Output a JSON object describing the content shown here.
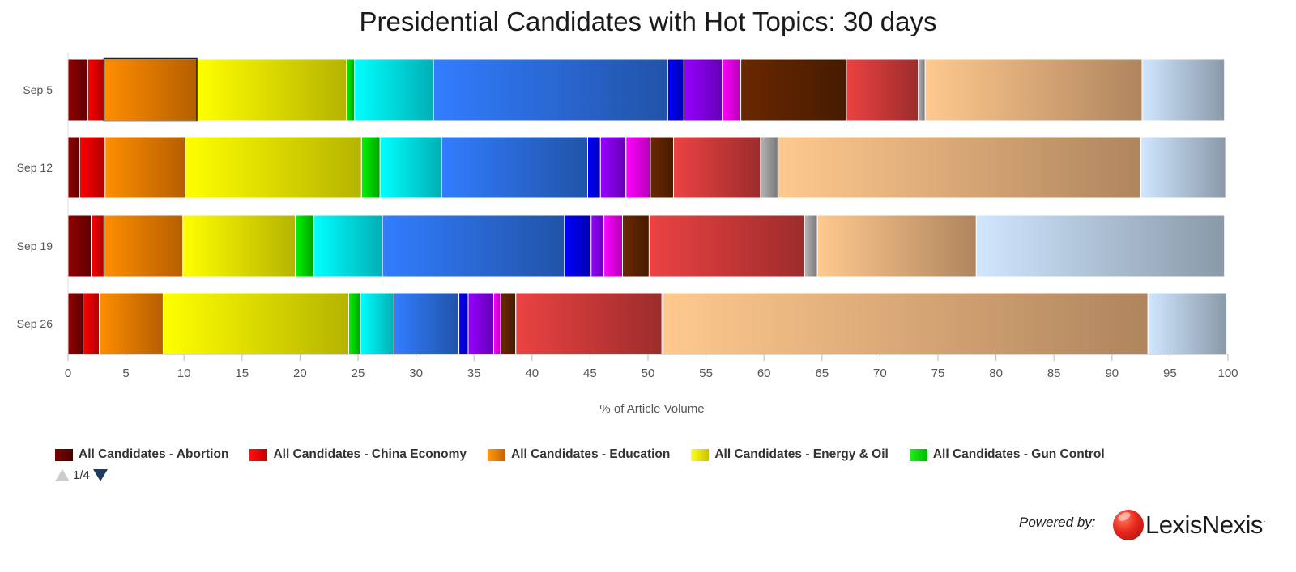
{
  "chart_data": {
    "type": "bar",
    "orientation": "horizontal",
    "stacking": "percent",
    "title": "Presidential Candidates with Hot Topics: 30 days",
    "xlabel": "% of Article Volume",
    "ylabel": "",
    "xlim": [
      0,
      100
    ],
    "x_ticks": [
      "0",
      "5",
      "10",
      "15",
      "20",
      "25",
      "30",
      "35",
      "40",
      "45",
      "50",
      "55",
      "60",
      "65",
      "70",
      "75",
      "80",
      "85",
      "90",
      "95",
      "100"
    ],
    "categories": [
      "Sep 5",
      "Sep 12",
      "Sep 19",
      "Sep 26"
    ],
    "series": [
      {
        "name": "All Candidates - Abortion",
        "color": "#7a0000",
        "values": [
          1.7,
          1.0,
          2.0,
          1.3
        ]
      },
      {
        "name": "All Candidates - China Economy",
        "color": "#e00000",
        "values": [
          1.4,
          2.2,
          1.1,
          1.4
        ]
      },
      {
        "name": "All Candidates - Education",
        "color": "#e87800",
        "values": [
          8.0,
          6.9,
          6.8,
          5.5
        ]
      },
      {
        "name": "All Candidates - Energy & Oil",
        "color": "#e8e600",
        "values": [
          12.9,
          15.2,
          9.7,
          16.0
        ]
      },
      {
        "name": "",
        "color": "#00d000",
        "values": [
          0.7,
          1.6,
          1.6,
          1.0
        ]
      },
      {
        "name": "",
        "color": "#00e0e8",
        "values": [
          6.8,
          5.3,
          5.9,
          2.9
        ]
      },
      {
        "name": "",
        "color": "#2a6ad8",
        "values": [
          20.2,
          12.6,
          15.7,
          5.6
        ]
      },
      {
        "name": "",
        "color": "#0000e0",
        "values": [
          1.4,
          1.1,
          2.3,
          0.8
        ]
      },
      {
        "name": "",
        "color": "#8000e8",
        "values": [
          3.3,
          2.2,
          1.1,
          2.2
        ]
      },
      {
        "name": "",
        "color": "#e800e8",
        "values": [
          1.6,
          2.1,
          1.6,
          0.6
        ]
      },
      {
        "name": "",
        "color": "#5a2200",
        "values": [
          9.1,
          2.0,
          2.3,
          1.3
        ]
      },
      {
        "name": "",
        "color": "#c83838",
        "values": [
          6.2,
          7.5,
          13.4,
          12.6
        ]
      },
      {
        "name": "",
        "color": "#999999",
        "values": [
          0.6,
          1.5,
          1.1,
          0.1
        ]
      },
      {
        "name": "",
        "color": "#e0aa78",
        "values": [
          18.7,
          31.3,
          13.7,
          41.8
        ]
      },
      {
        "name": "",
        "color": "#b0c4d8",
        "values": [
          7.1,
          7.3,
          21.4,
          6.8
        ]
      }
    ],
    "legend_position": "bottom-left",
    "grid": false
  },
  "legend": {
    "page": "1/4",
    "visible_items": [
      {
        "label": "All Candidates - Abortion",
        "color": "#7a0000"
      },
      {
        "label": "All Candidates - China Economy",
        "color": "#e00000"
      },
      {
        "label": "All Candidates - Education",
        "color": "#e87800"
      },
      {
        "label": "All Candidates - Energy & Oil",
        "color": "#e8e600"
      },
      {
        "label": "All Candidates - Gun Control",
        "color": "#00d000"
      }
    ],
    "prev_icon": "triangle-up-icon",
    "next_icon": "triangle-down-icon"
  },
  "footer": {
    "powered_by": "Powered by:",
    "brand": "LexisNexis",
    "brand_mark": "·"
  }
}
